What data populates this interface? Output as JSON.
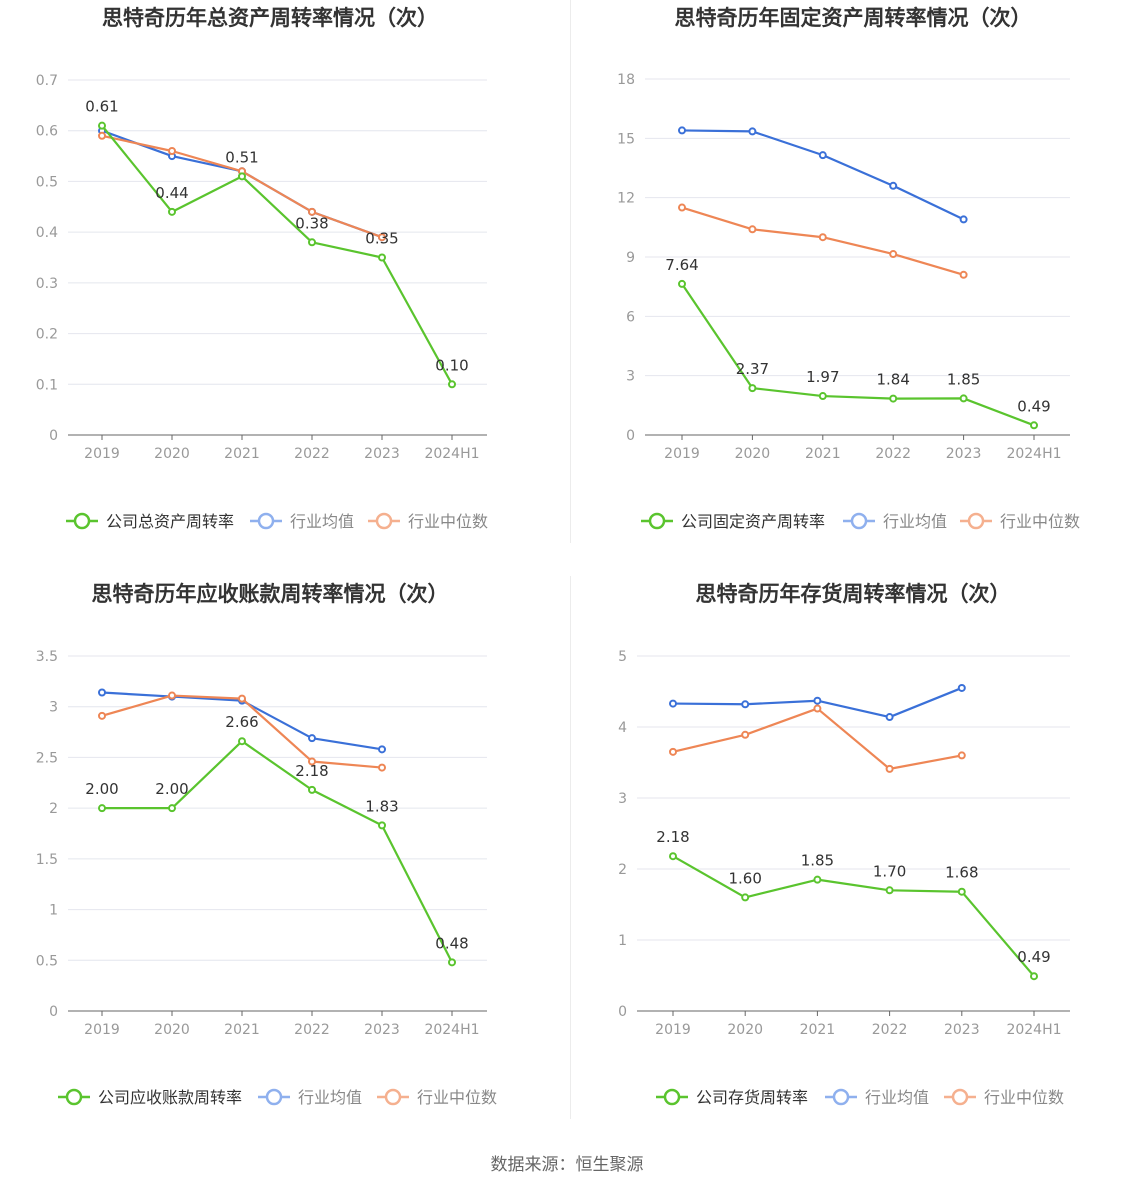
{
  "colors": {
    "company": "#5ac42e",
    "avg": "#3a70d8",
    "median": "#ee8655",
    "avg_legend": "#8fb0ee",
    "median_legend": "#f5b08f",
    "grid": "#e4e6ee",
    "axis": "#999999"
  },
  "footer": "数据来源：恒生聚源",
  "chart_data": [
    {
      "type": "line",
      "title": "思特奇历年总资产周转率情况（次）",
      "categories": [
        "2019",
        "2020",
        "2021",
        "2022",
        "2023",
        "2024H1"
      ],
      "ylim": [
        0,
        0.7
      ],
      "yticks": [
        "0",
        "0.1",
        "0.2",
        "0.3",
        "0.4",
        "0.5",
        "0.6",
        "0.7"
      ],
      "series": [
        {
          "name": "公司总资产周转率",
          "role": "company",
          "values": [
            0.61,
            0.44,
            0.51,
            0.38,
            0.35,
            0.1
          ],
          "labels": [
            "0.61",
            "0.44",
            "0.51",
            "0.38",
            "0.35",
            "0.10"
          ]
        },
        {
          "name": "行业均值",
          "role": "avg",
          "values": [
            0.6,
            0.55,
            0.52,
            0.44,
            0.39,
            null
          ]
        },
        {
          "name": "行业中位数",
          "role": "median",
          "values": [
            0.59,
            0.56,
            0.52,
            0.44,
            0.39,
            null
          ]
        }
      ],
      "legend": "bottom",
      "grid": true
    },
    {
      "type": "line",
      "title": "思特奇历年固定资产周转率情况（次）",
      "categories": [
        "2019",
        "2020",
        "2021",
        "2022",
        "2023",
        "2024H1"
      ],
      "ylim": [
        0,
        18
      ],
      "yticks": [
        "0",
        "3",
        "6",
        "9",
        "12",
        "15",
        "18"
      ],
      "series": [
        {
          "name": "公司固定资产周转率",
          "role": "company",
          "values": [
            7.64,
            2.37,
            1.97,
            1.84,
            1.85,
            0.49
          ],
          "labels": [
            "7.64",
            "2.37",
            "1.97",
            "1.84",
            "1.85",
            "0.49"
          ]
        },
        {
          "name": "行业均值",
          "role": "avg",
          "values": [
            15.4,
            15.35,
            14.15,
            12.6,
            10.9,
            null
          ]
        },
        {
          "name": "行业中位数",
          "role": "median",
          "values": [
            11.5,
            10.4,
            10.0,
            9.15,
            8.1,
            null
          ]
        }
      ],
      "legend": "bottom",
      "grid": true
    },
    {
      "type": "line",
      "title": "思特奇历年应收账款周转率情况（次）",
      "categories": [
        "2019",
        "2020",
        "2021",
        "2022",
        "2023",
        "2024H1"
      ],
      "ylim": [
        0,
        3.5
      ],
      "yticks": [
        "0",
        "0.5",
        "1",
        "1.5",
        "2",
        "2.5",
        "3",
        "3.5"
      ],
      "series": [
        {
          "name": "公司应收账款周转率",
          "role": "company",
          "values": [
            2.0,
            2.0,
            2.66,
            2.18,
            1.83,
            0.48
          ],
          "labels": [
            "2.00",
            "2.00",
            "2.66",
            "2.18",
            "1.83",
            "0.48"
          ]
        },
        {
          "name": "行业均值",
          "role": "avg",
          "values": [
            3.14,
            3.1,
            3.06,
            2.69,
            2.58,
            null
          ]
        },
        {
          "name": "行业中位数",
          "role": "median",
          "values": [
            2.91,
            3.11,
            3.08,
            2.46,
            2.4,
            null
          ]
        }
      ],
      "legend": "bottom",
      "grid": true
    },
    {
      "type": "line",
      "title": "思特奇历年存货周转率情况（次）",
      "categories": [
        "2019",
        "2020",
        "2021",
        "2022",
        "2023",
        "2024H1"
      ],
      "ylim": [
        0,
        5
      ],
      "yticks": [
        "0",
        "1",
        "2",
        "3",
        "4",
        "5"
      ],
      "series": [
        {
          "name": "公司存货周转率",
          "role": "company",
          "values": [
            2.18,
            1.6,
            1.85,
            1.7,
            1.68,
            0.49
          ],
          "labels": [
            "2.18",
            "1.60",
            "1.85",
            "1.70",
            "1.68",
            "0.49"
          ]
        },
        {
          "name": "行业均值",
          "role": "avg",
          "values": [
            4.33,
            4.32,
            4.37,
            4.14,
            4.55,
            null
          ]
        },
        {
          "name": "行业中位数",
          "role": "median",
          "values": [
            3.65,
            3.89,
            4.26,
            3.41,
            3.6,
            null
          ]
        }
      ],
      "legend": "bottom",
      "grid": true
    }
  ]
}
